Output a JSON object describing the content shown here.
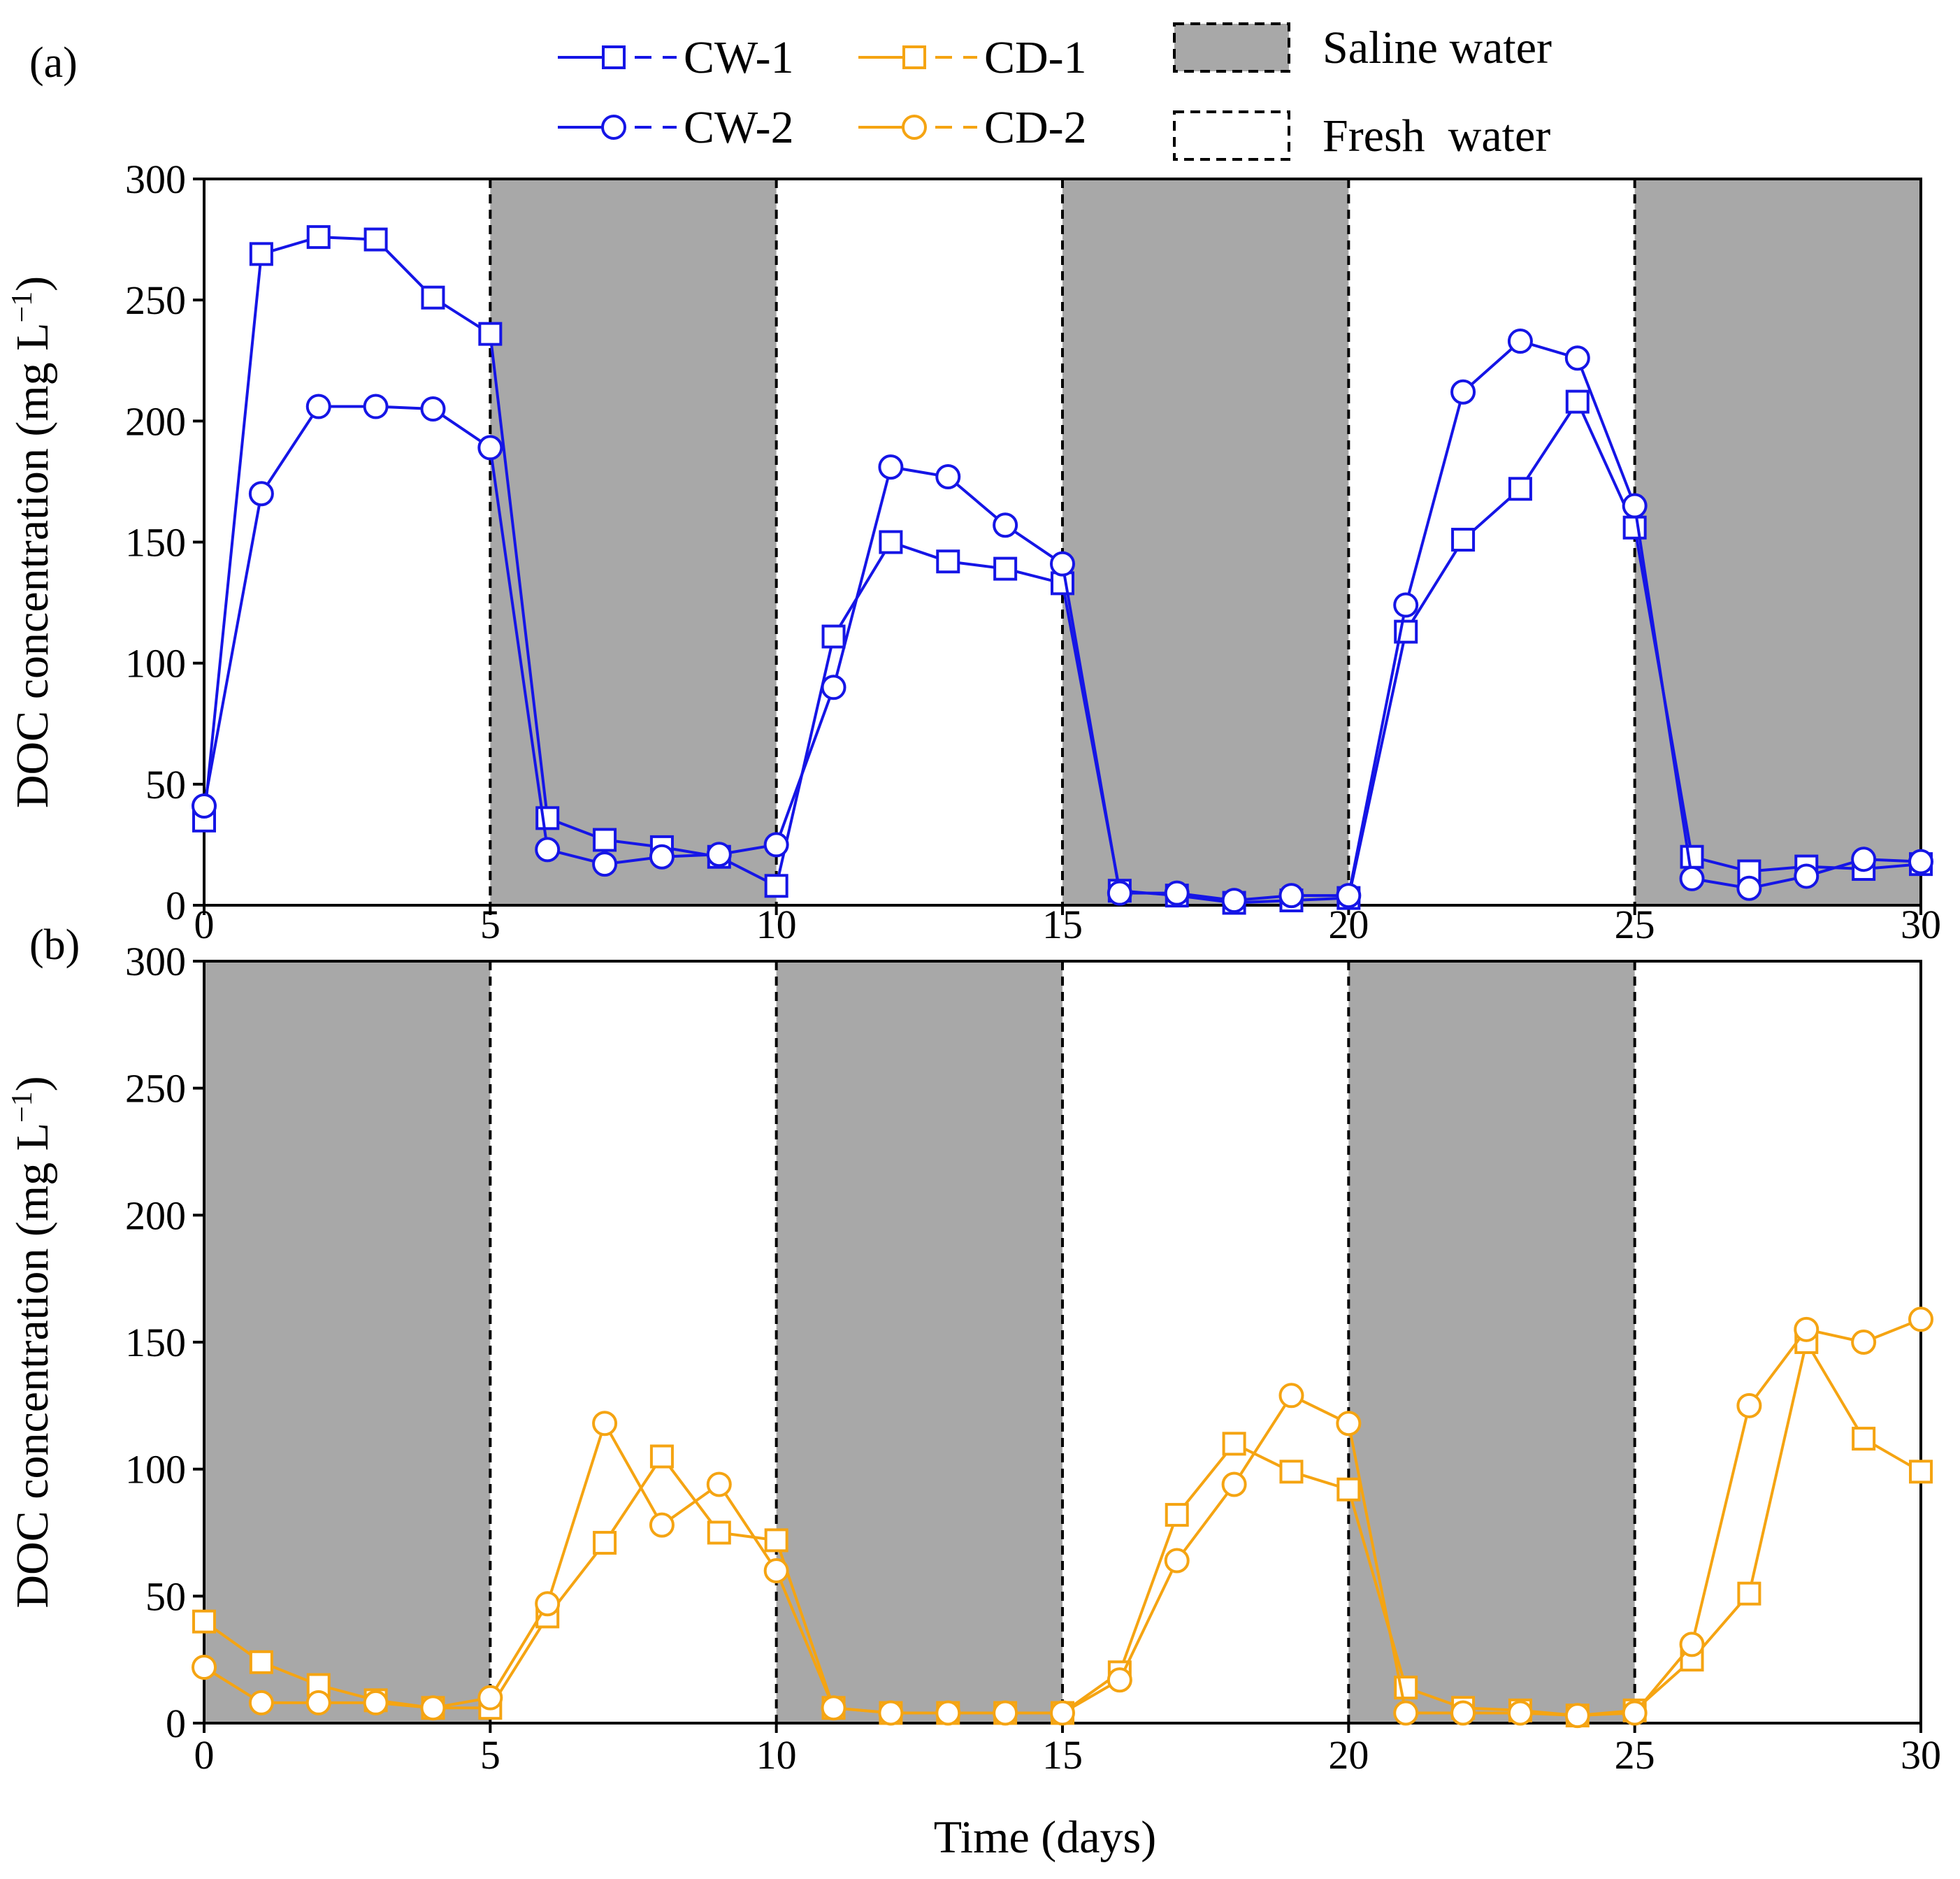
{
  "chart_data": {
    "type": "line",
    "xlabel": "Time (days)",
    "xlim": [
      0,
      30
    ],
    "x_ticks": [
      0,
      5,
      10,
      15,
      20,
      25,
      30
    ],
    "y_ticks": [
      0,
      50,
      100,
      150,
      200,
      250,
      300
    ],
    "legend": {
      "placement": "top-center",
      "series_entries": [
        {
          "name": "CW-1",
          "color": "#1515e6",
          "marker": "square"
        },
        {
          "name": "CW-2",
          "color": "#1515e6",
          "marker": "circle"
        },
        {
          "name": "CD-1",
          "color": "#f5a412",
          "marker": "square"
        },
        {
          "name": "CD-2",
          "color": "#f5a412",
          "marker": "circle"
        }
      ],
      "region_entries": [
        {
          "name": "Saline water",
          "fill": "#a8a8a8"
        },
        {
          "name": "Fresh  water",
          "fill": "#ffffff"
        }
      ]
    },
    "panels": [
      {
        "label": "(a)",
        "ylabel": "DOC concentration (mg L",
        "ylabel_sup": "−1",
        "ylabel_close": ")",
        "ylim": [
          0,
          300
        ],
        "saline_intervals": [
          [
            5,
            10
          ],
          [
            15,
            20
          ],
          [
            25,
            30
          ]
        ],
        "boundaries": [
          5,
          10,
          15,
          20,
          25
        ],
        "show_x_tick_labels": true,
        "series": [
          {
            "name": "CW-1",
            "marker": "square",
            "color": "#1515e6",
            "x": [
              0,
              1,
              2,
              3,
              4,
              5,
              6,
              7,
              8,
              9,
              10,
              11,
              12,
              13,
              14,
              15,
              16,
              17,
              18,
              19,
              20,
              21,
              22,
              23,
              24,
              25,
              26,
              27,
              28,
              29,
              30
            ],
            "y": [
              35,
              269,
              276,
              275,
              251,
              236,
              36,
              27,
              24,
              20,
              8,
              111,
              150,
              142,
              139,
              133,
              6,
              4,
              1,
              2,
              3,
              113,
              151,
              172,
              208,
              156,
              20,
              14,
              16,
              15,
              17
            ]
          },
          {
            "name": "CW-2",
            "marker": "circle",
            "color": "#1515e6",
            "x": [
              0,
              1,
              2,
              3,
              4,
              5,
              6,
              7,
              8,
              9,
              10,
              11,
              12,
              13,
              14,
              15,
              16,
              17,
              18,
              19,
              20,
              21,
              22,
              23,
              24,
              25,
              26,
              27,
              28,
              29,
              30
            ],
            "y": [
              41,
              170,
              206,
              206,
              205,
              189,
              23,
              17,
              20,
              21,
              25,
              90,
              181,
              177,
              157,
              141,
              5,
              5,
              2,
              4,
              4,
              124,
              212,
              233,
              226,
              165,
              11,
              7,
              12,
              19,
              18
            ]
          }
        ]
      },
      {
        "label": "(b)",
        "ylabel": "DOC concentration (mg L",
        "ylabel_sup": "−1",
        "ylabel_close": ")",
        "ylim": [
          0,
          300
        ],
        "saline_intervals": [
          [
            0,
            5
          ],
          [
            10,
            15
          ],
          [
            20,
            25
          ]
        ],
        "boundaries": [
          5,
          10,
          15,
          20,
          25
        ],
        "show_x_tick_labels": true,
        "series": [
          {
            "name": "CD-1",
            "marker": "square",
            "color": "#f5a412",
            "x": [
              0,
              1,
              2,
              3,
              4,
              5,
              6,
              7,
              8,
              9,
              10,
              11,
              12,
              13,
              14,
              15,
              16,
              17,
              18,
              19,
              20,
              21,
              22,
              23,
              24,
              25,
              26,
              27,
              28,
              29,
              30
            ],
            "y": [
              40,
              24,
              15,
              9,
              6,
              6,
              42,
              71,
              105,
              75,
              72,
              6,
              4,
              4,
              4,
              4,
              20,
              82,
              110,
              99,
              92,
              14,
              6,
              5,
              3,
              5,
              25,
              51,
              150,
              112,
              99
            ]
          },
          {
            "name": "CD-2",
            "marker": "circle",
            "color": "#f5a412",
            "x": [
              0,
              1,
              2,
              3,
              4,
              5,
              6,
              7,
              8,
              9,
              10,
              11,
              12,
              13,
              14,
              15,
              16,
              17,
              18,
              19,
              20,
              21,
              22,
              23,
              24,
              25,
              26,
              27,
              28,
              29,
              30
            ],
            "y": [
              22,
              8,
              8,
              8,
              6,
              10,
              47,
              118,
              78,
              94,
              60,
              6,
              4,
              4,
              4,
              4,
              17,
              64,
              94,
              129,
              118,
              4,
              4,
              4,
              3,
              4,
              31,
              125,
              155,
              150,
              159
            ]
          }
        ]
      }
    ]
  }
}
